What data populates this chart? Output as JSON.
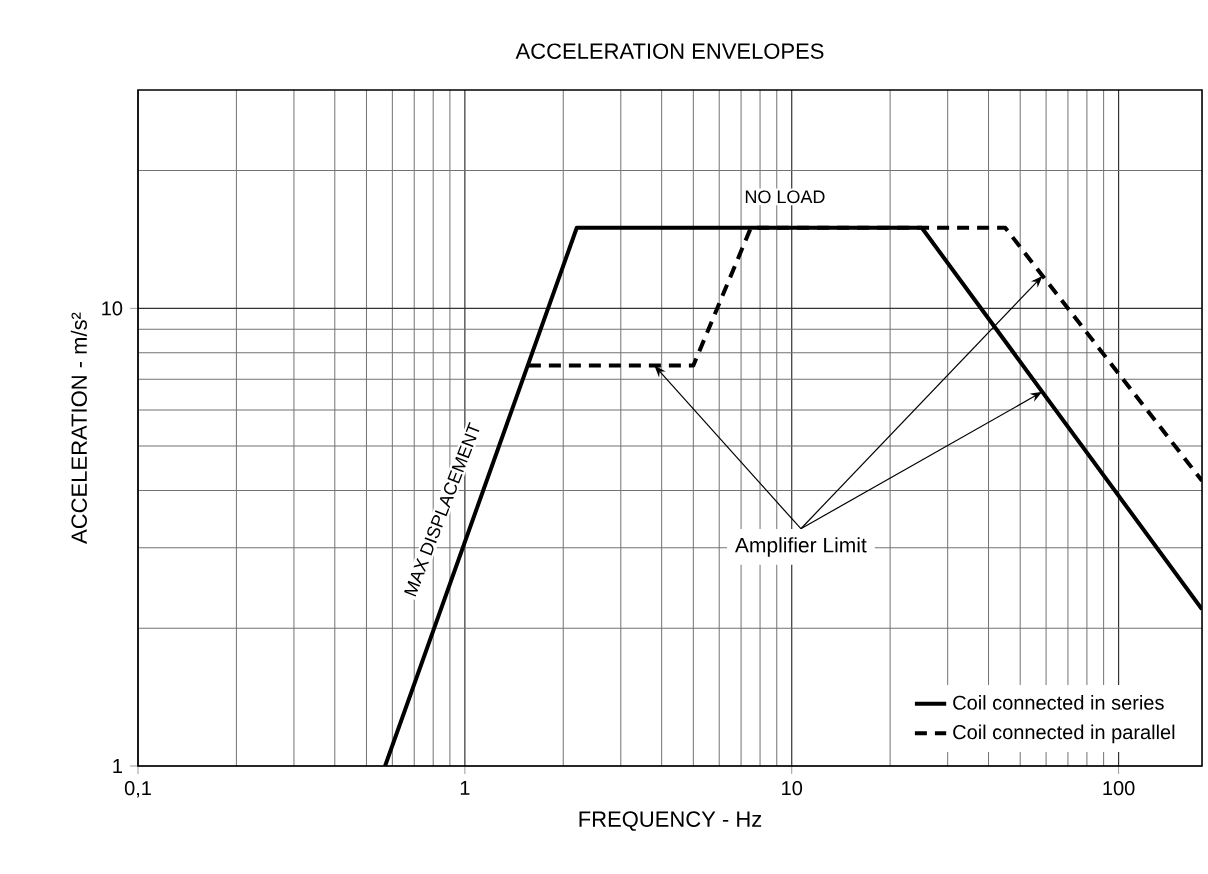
{
  "chart_data": {
    "type": "line",
    "title": "ACCELERATION ENVELOPES",
    "xlabel": "FREQUENCY  -  Hz",
    "ylabel": "ACCELERATION  -  m/s²",
    "log": "xy",
    "grid": true,
    "legend": "bottom right",
    "xlim": [
      0.1,
      180
    ],
    "ylim": [
      1,
      30
    ],
    "xticks": [
      {
        "value": 0.1,
        "label": "0,1"
      },
      1,
      10,
      100
    ],
    "yticks": [
      1,
      10
    ],
    "series": [
      {
        "name": "Coil connected in series",
        "color": "#000000",
        "line_style": "solid",
        "x": [
          0.57,
          2.2,
          25,
          180
        ],
        "values": [
          1,
          15,
          15,
          2.2
        ]
      },
      {
        "name": "Coil connected in parallel",
        "color": "#000000",
        "line_style": "dashed",
        "x": [
          1.57,
          5,
          7.5,
          45,
          180
        ],
        "values": [
          7.5,
          7.5,
          15,
          15,
          4.2
        ]
      }
    ],
    "annotations": [
      "NO LOAD",
      "MAX DISPLACEMENT",
      {
        "text": "Amplifier Limit",
        "x": 3.8,
        "y": 7.5
      }
    ]
  }
}
